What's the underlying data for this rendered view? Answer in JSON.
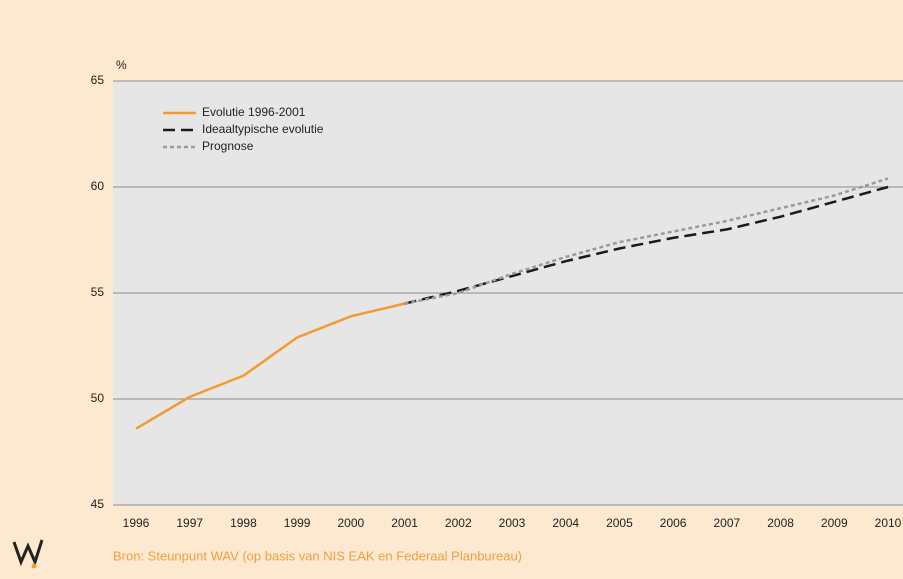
{
  "chart_data": {
    "type": "line",
    "y_label": "%",
    "x": [
      1996,
      1997,
      1998,
      1999,
      2000,
      2001,
      2002,
      2003,
      2004,
      2005,
      2006,
      2007,
      2008,
      2009,
      2010
    ],
    "series": [
      {
        "name": "Evolutie 1996-2001",
        "color": "#f39a32",
        "style": "solid",
        "values": [
          48.6,
          50.1,
          51.1,
          52.9,
          53.9,
          54.5,
          null,
          null,
          null,
          null,
          null,
          null,
          null,
          null,
          null
        ]
      },
      {
        "name": "Ideaaltypische evolutie",
        "color": "#1a1a1a",
        "style": "dashed",
        "values": [
          null,
          null,
          null,
          null,
          null,
          54.5,
          55.1,
          55.8,
          56.5,
          57.1,
          57.6,
          58.0,
          58.6,
          59.3,
          60.0
        ]
      },
      {
        "name": "Prognose",
        "color": "#9a9a9a",
        "style": "dotted",
        "values": [
          null,
          null,
          null,
          null,
          null,
          54.5,
          55.0,
          55.9,
          56.7,
          57.4,
          57.9,
          58.4,
          59.0,
          59.6,
          60.4
        ]
      }
    ],
    "ylim": [
      45,
      65
    ],
    "yticks": [
      45,
      50,
      55,
      60,
      65
    ],
    "grid": true,
    "legend": "upper-left",
    "source": "Bron: Steunpunt WAV (op basis van NIS EAK en Federaal Planbureau)"
  }
}
